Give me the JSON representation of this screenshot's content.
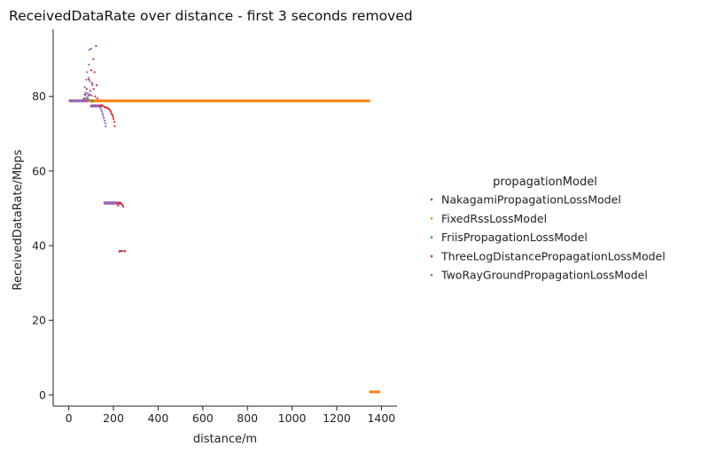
{
  "chart_data": {
    "type": "scatter",
    "title": "ReceivedDataRate over distance - first 3 seconds removed",
    "xlabel": "distance/m",
    "ylabel": "ReceivedDataRate/Mbps",
    "xlim": [
      -70,
      1470
    ],
    "ylim": [
      -3,
      98
    ],
    "xticks": [
      0,
      200,
      400,
      600,
      800,
      1000,
      1200,
      1400
    ],
    "yticks": [
      0,
      20,
      40,
      60,
      80
    ],
    "grid": false,
    "legend": {
      "title": "propagationModel",
      "placement": "right"
    },
    "series": [
      {
        "name": "NakagamiPropagationLossModel",
        "color": "#1f77b4",
        "points": [
          [
            60,
            78.8
          ],
          [
            75,
            79.2
          ],
          [
            88,
            80.2
          ],
          [
            95,
            81.5
          ],
          [
            105,
            78.6
          ],
          [
            118,
            77.6
          ],
          [
            130,
            77.4
          ]
        ]
      },
      {
        "name": "FixedRssLossModel",
        "color": "#ff7f0e",
        "segments": [
          [
            0,
            78.8,
            1350,
            78.8
          ],
          [
            1345,
            0.8,
            1395,
            0.8
          ]
        ],
        "points": [
          [
            120,
            78.9
          ],
          [
            600,
            78.8
          ],
          [
            1000,
            78.8
          ]
        ]
      },
      {
        "name": "FriisPropagationLossModel",
        "color": "#2ca02c",
        "points": [
          [
            70,
            78.9
          ],
          [
            85,
            79.5
          ],
          [
            98,
            79.0
          ],
          [
            108,
            78.7
          ]
        ]
      },
      {
        "name": "ThreeLogDistancePropagationLossModel",
        "color": "#d62728",
        "segments": [
          [
            100,
            77.5,
            155,
            77.5
          ],
          [
            160,
            51.4,
            235,
            51.4
          ]
        ],
        "points": [
          [
            70,
            79.5
          ],
          [
            75,
            80.5
          ],
          [
            80,
            82.0
          ],
          [
            85,
            79.0
          ],
          [
            90,
            84.5
          ],
          [
            95,
            80.5
          ],
          [
            100,
            87.0
          ],
          [
            105,
            83.5
          ],
          [
            110,
            90.0
          ],
          [
            112,
            82.0
          ],
          [
            115,
            86.5
          ],
          [
            118,
            80.0
          ],
          [
            122,
            93.5
          ],
          [
            125,
            83.0
          ],
          [
            128,
            79.5
          ],
          [
            160,
            77.2
          ],
          [
            165,
            77.1
          ],
          [
            170,
            77.0
          ],
          [
            175,
            76.8
          ],
          [
            180,
            76.6
          ],
          [
            185,
            76.3
          ],
          [
            188,
            75.9
          ],
          [
            192,
            75.4
          ],
          [
            195,
            75.0
          ],
          [
            198,
            74.6
          ],
          [
            200,
            74.0
          ],
          [
            204,
            73.2
          ],
          [
            206,
            72.0
          ],
          [
            236,
            51.2
          ],
          [
            240,
            50.9
          ],
          [
            244,
            50.5
          ],
          [
            228,
            38.6
          ],
          [
            234,
            38.6
          ],
          [
            238,
            38.5
          ],
          [
            248,
            38.6
          ],
          [
            252,
            38.5
          ]
        ]
      },
      {
        "name": "TwoRayGroundPropagationLossModel",
        "color": "#9467bd",
        "segments": [
          [
            0,
            78.8,
            85,
            78.8
          ],
          [
            95,
            77.4,
            140,
            77.4
          ],
          [
            155,
            51.5,
            215,
            51.5
          ],
          [
            222,
            38.5,
            232,
            38.5
          ]
        ],
        "points": [
          [
            65,
            79.2
          ],
          [
            70,
            80.5
          ],
          [
            72,
            82.5
          ],
          [
            75,
            81.0
          ],
          [
            78,
            84.5
          ],
          [
            80,
            79.8
          ],
          [
            82,
            86.5
          ],
          [
            85,
            80.8
          ],
          [
            88,
            85.0
          ],
          [
            90,
            88.5
          ],
          [
            92,
            92.5
          ],
          [
            95,
            84.0
          ],
          [
            98,
            81.5
          ],
          [
            100,
            92.8
          ],
          [
            103,
            80.2
          ],
          [
            106,
            83.0
          ],
          [
            140,
            77.0
          ],
          [
            145,
            76.5
          ],
          [
            148,
            76.0
          ],
          [
            151,
            75.4
          ],
          [
            154,
            74.8
          ],
          [
            157,
            74.2
          ],
          [
            160,
            73.5
          ],
          [
            163,
            72.8
          ],
          [
            165,
            72.0
          ],
          [
            216,
            51.2
          ],
          [
            219,
            50.9
          ],
          [
            222,
            50.7
          ]
        ]
      }
    ]
  }
}
